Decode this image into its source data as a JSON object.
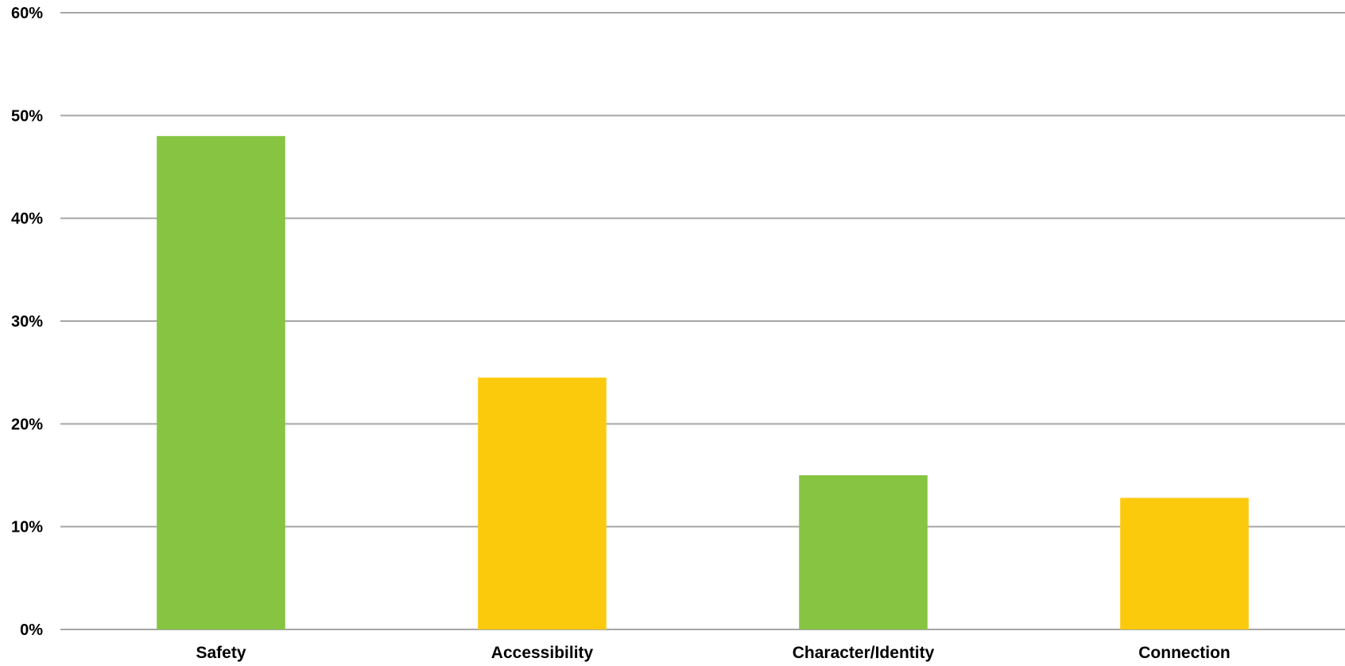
{
  "chart_data": {
    "type": "bar",
    "categories": [
      "Safety",
      "Accessibility",
      "Character/Identity",
      "Connection"
    ],
    "values": [
      48,
      24.5,
      15,
      12.8
    ],
    "value_unit": "%",
    "ylim": [
      0,
      60
    ],
    "yticks": [
      0,
      10,
      20,
      30,
      40,
      50,
      60
    ],
    "ytick_labels": [
      "0%",
      "10%",
      "20%",
      "30%",
      "40%",
      "50%",
      "60%"
    ],
    "grid": true,
    "legend": "none",
    "bar_colors": [
      "#86c442",
      "#fcca0d",
      "#86c442",
      "#fcca0d"
    ],
    "title": "",
    "xlabel": "",
    "ylabel": ""
  }
}
